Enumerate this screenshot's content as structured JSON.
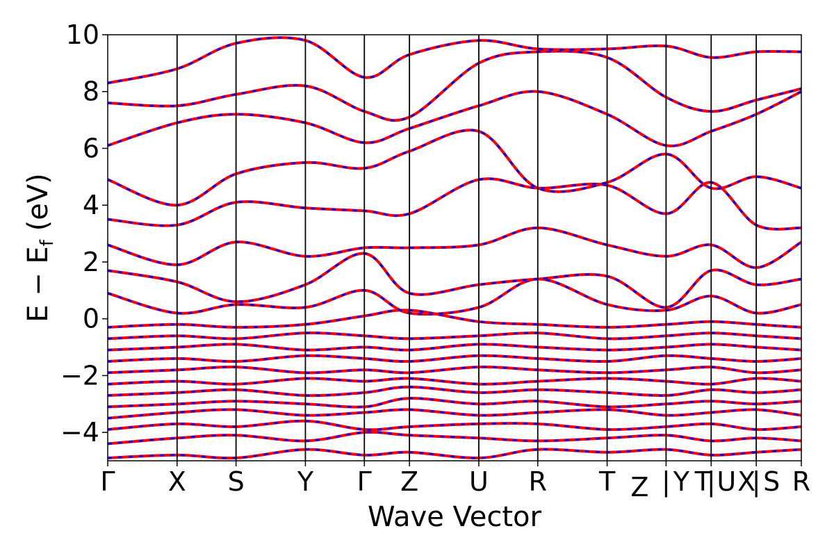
{
  "chart_data": {
    "type": "line",
    "xlabel": "Wave Vector",
    "ylabel": "E − E_f (eV)",
    "ylabel_parts": {
      "main": "E − E",
      "sub": "f",
      "unit": " (eV)"
    },
    "ylim": [
      -5,
      10
    ],
    "yticks": [
      -4,
      -2,
      0,
      2,
      4,
      6,
      8,
      10
    ],
    "ytick_labels": [
      "−4",
      "−2",
      "0",
      "2",
      "4",
      "6",
      "8",
      "10"
    ],
    "k_path": [
      {
        "label": "Γ",
        "k": 0.0
      },
      {
        "label": "X",
        "k": 1.0
      },
      {
        "label": "S",
        "k": 1.85
      },
      {
        "label": "Y",
        "k": 2.85
      },
      {
        "label": "Γ",
        "k": 3.7
      },
      {
        "label": "Z",
        "k": 4.35
      },
      {
        "label": "U",
        "k": 5.35
      },
      {
        "label": "R",
        "k": 6.2
      },
      {
        "label": "T",
        "k": 7.2
      },
      {
        "label": "Z|Y",
        "k": 8.05
      },
      {
        "label": "T|U",
        "k": 8.7
      },
      {
        "label": "X|S",
        "k": 9.35
      },
      {
        "label": "R",
        "k": 10.0
      }
    ],
    "x_tick_labels": [
      "Γ",
      "X",
      "S",
      "Y",
      "Γ",
      "Z",
      "U",
      "R",
      "T",
      "Z",
      "|",
      "Y",
      "T",
      "|",
      "U",
      "X",
      "|",
      "S",
      "R"
    ],
    "series": [
      {
        "style": "solid",
        "color": "#ff0000"
      },
      {
        "style": "dashed",
        "color": "#0000ff"
      }
    ],
    "bands": [
      [
        -4.9,
        -4.8,
        -4.9,
        -4.6,
        -4.8,
        -4.7,
        -4.9,
        -4.6,
        -4.7,
        -4.6,
        -4.8,
        -4.7,
        -4.6
      ],
      [
        -4.4,
        -4.2,
        -4.1,
        -4.3,
        -4.0,
        -4.1,
        -4.2,
        -4.3,
        -4.2,
        -4.1,
        -4.3,
        -4.2,
        -4.3
      ],
      [
        -3.9,
        -3.7,
        -3.8,
        -3.6,
        -3.9,
        -3.8,
        -3.7,
        -3.7,
        -3.9,
        -3.8,
        -3.7,
        -3.9,
        -3.8
      ],
      [
        -3.5,
        -3.3,
        -3.2,
        -3.4,
        -3.3,
        -3.2,
        -3.4,
        -3.3,
        -3.2,
        -3.4,
        -3.3,
        -3.2,
        -3.4
      ],
      [
        -3.1,
        -3.0,
        -2.9,
        -3.0,
        -3.1,
        -2.8,
        -3.0,
        -2.9,
        -3.1,
        -3.0,
        -2.9,
        -3.0,
        -2.9
      ],
      [
        -2.7,
        -2.6,
        -2.5,
        -2.7,
        -2.6,
        -2.4,
        -2.6,
        -2.5,
        -2.6,
        -2.7,
        -2.5,
        -2.6,
        -2.5
      ],
      [
        -2.3,
        -2.2,
        -2.3,
        -2.1,
        -2.2,
        -2.1,
        -2.3,
        -2.2,
        -2.1,
        -2.2,
        -2.3,
        -2.1,
        -2.2
      ],
      [
        -1.9,
        -1.8,
        -1.7,
        -1.9,
        -1.8,
        -1.9,
        -1.7,
        -1.8,
        -1.9,
        -1.8,
        -1.7,
        -1.9,
        -1.8
      ],
      [
        -1.5,
        -1.4,
        -1.5,
        -1.3,
        -1.4,
        -1.5,
        -1.3,
        -1.4,
        -1.5,
        -1.3,
        -1.4,
        -1.5,
        -1.4
      ],
      [
        -1.1,
        -1.0,
        -0.9,
        -1.1,
        -1.0,
        -1.1,
        -0.9,
        -1.0,
        -1.1,
        -1.0,
        -0.9,
        -1.0,
        -1.1
      ],
      [
        -0.7,
        -0.6,
        -0.7,
        -0.5,
        -0.6,
        -0.7,
        -0.6,
        -0.5,
        -0.7,
        -0.6,
        -0.5,
        -0.6,
        -0.7
      ],
      [
        -0.3,
        -0.2,
        -0.3,
        -0.2,
        0.1,
        0.3,
        -0.1,
        -0.2,
        -0.3,
        -0.2,
        -0.1,
        -0.2,
        -0.3
      ],
      [
        0.9,
        0.2,
        0.5,
        0.4,
        1.0,
        0.2,
        0.4,
        1.4,
        0.5,
        0.3,
        0.8,
        0.2,
        0.5
      ],
      [
        1.7,
        1.3,
        0.6,
        1.2,
        2.3,
        0.9,
        1.2,
        1.4,
        1.5,
        0.4,
        1.7,
        1.2,
        1.4
      ],
      [
        2.6,
        1.9,
        2.7,
        2.2,
        2.5,
        2.5,
        2.6,
        3.2,
        2.6,
        2.2,
        2.6,
        1.8,
        2.7
      ],
      [
        3.5,
        3.3,
        4.1,
        3.9,
        3.8,
        3.7,
        4.9,
        4.6,
        4.7,
        3.7,
        4.8,
        3.3,
        3.2
      ],
      [
        4.9,
        4.0,
        5.1,
        5.5,
        5.3,
        5.9,
        6.6,
        4.6,
        4.8,
        5.8,
        4.6,
        5.0,
        4.6
      ],
      [
        6.1,
        6.9,
        7.2,
        6.9,
        6.2,
        6.7,
        7.5,
        8.0,
        7.2,
        6.1,
        6.6,
        7.2,
        8.0
      ],
      [
        7.6,
        7.5,
        7.9,
        8.2,
        7.3,
        7.1,
        9.0,
        9.4,
        9.2,
        7.8,
        7.3,
        7.7,
        8.1
      ],
      [
        8.3,
        8.8,
        9.7,
        9.8,
        8.5,
        9.3,
        9.8,
        9.5,
        9.5,
        9.6,
        9.2,
        9.4,
        9.4
      ]
    ]
  }
}
